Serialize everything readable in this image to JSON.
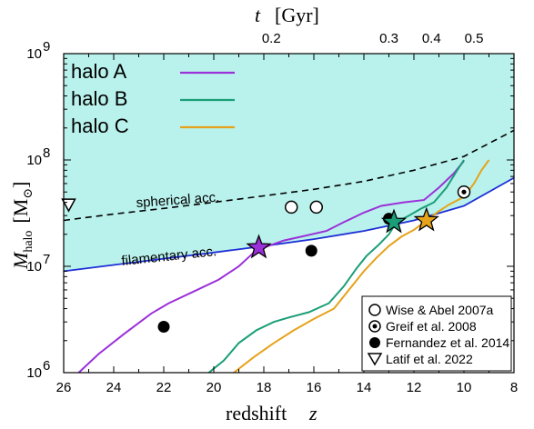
{
  "chart_data": {
    "type": "line",
    "xlabel": "redshift",
    "xlabel_var": "z",
    "ylabel_var": "M",
    "ylabel_sub": "halo",
    "ylabel_unit_open": "[M",
    "ylabel_unit_close": "]",
    "top_axis_var": "t",
    "top_axis_unit": "[Gyr]",
    "x_range": [
      26,
      8
    ],
    "y_range": [
      1000000,
      1000000000
    ],
    "y_scale": "log",
    "x_ticks": [
      "26",
      "24",
      "22",
      "20",
      "18",
      "16",
      "14",
      "12",
      "10",
      "8"
    ],
    "y_ticks": [
      {
        "base": "10",
        "exp": "6",
        "value": 1000000
      },
      {
        "base": "10",
        "exp": "7",
        "value": 10000000
      },
      {
        "base": "10",
        "exp": "8",
        "value": 100000000
      },
      {
        "base": "10",
        "exp": "9",
        "value": 1000000000
      }
    ],
    "top_ticks": [
      {
        "label": "0.2",
        "z": 17.7
      },
      {
        "label": "0.3",
        "z": 13.0
      },
      {
        "label": "0.4",
        "z": 11.3
      },
      {
        "label": "0.5",
        "z": 9.6
      }
    ],
    "colors": {
      "halo_a": "#9b30d9",
      "halo_b": "#1a9e77",
      "halo_c": "#e6a21a",
      "filamentary": "#1f2fd6",
      "spherical": "#000000",
      "shade": "#b9f2ec"
    },
    "curves": {
      "spherical": {
        "label": "spherical acc.",
        "points": [
          [
            26,
            27000000
          ],
          [
            24,
            31000000
          ],
          [
            22,
            35000000
          ],
          [
            20,
            40000000
          ],
          [
            18,
            46000000
          ],
          [
            16,
            53000000
          ],
          [
            14,
            63000000
          ],
          [
            12,
            80000000
          ],
          [
            10,
            108000000
          ],
          [
            8,
            190000000
          ]
        ]
      },
      "filamentary": {
        "label": "filamentary acc.",
        "points": [
          [
            26,
            9000000
          ],
          [
            24,
            10300000
          ],
          [
            22,
            11800000
          ],
          [
            20,
            13500000
          ],
          [
            18,
            15500000
          ],
          [
            16,
            18000000
          ],
          [
            14,
            21500000
          ],
          [
            12,
            27000000
          ],
          [
            10,
            37000000
          ],
          [
            8,
            68000000
          ]
        ]
      }
    },
    "series": [
      {
        "name": "halo A",
        "color": "#9b30d9",
        "points": [
          [
            25.4,
            1000000
          ],
          [
            24.6,
            1500000
          ],
          [
            23.6,
            2300000
          ],
          [
            22.5,
            3600000
          ],
          [
            21.8,
            4500000
          ],
          [
            20.8,
            5800000
          ],
          [
            19.8,
            7500000
          ],
          [
            19.0,
            10000000
          ],
          [
            18.4,
            13500000
          ],
          [
            18.0,
            15000000
          ],
          [
            17.2,
            17500000
          ],
          [
            16.3,
            19500000
          ],
          [
            15.5,
            21500000
          ],
          [
            14.8,
            26000000
          ],
          [
            14.0,
            32000000
          ],
          [
            13.3,
            37000000
          ],
          [
            12.4,
            40000000
          ],
          [
            11.6,
            42000000
          ],
          [
            11.0,
            55000000
          ],
          [
            10.4,
            75000000
          ],
          [
            10.0,
            98000000
          ]
        ]
      },
      {
        "name": "halo B",
        "color": "#1a9e77",
        "points": [
          [
            20.2,
            1000000
          ],
          [
            19.6,
            1300000
          ],
          [
            19.0,
            1900000
          ],
          [
            18.3,
            2500000
          ],
          [
            17.6,
            3000000
          ],
          [
            17.0,
            3300000
          ],
          [
            16.2,
            3700000
          ],
          [
            15.4,
            4500000
          ],
          [
            14.8,
            6500000
          ],
          [
            14.3,
            9500000
          ],
          [
            13.9,
            12500000
          ],
          [
            13.4,
            16000000
          ],
          [
            13.0,
            20000000
          ],
          [
            12.7,
            26000000
          ],
          [
            12.2,
            30000000
          ],
          [
            11.7,
            35000000
          ],
          [
            11.2,
            40000000
          ],
          [
            10.7,
            55000000
          ],
          [
            10.3,
            78000000
          ],
          [
            10.0,
            100000000
          ]
        ]
      },
      {
        "name": "halo C",
        "color": "#e6a21a",
        "points": [
          [
            19.2,
            1000000
          ],
          [
            18.4,
            1400000
          ],
          [
            17.6,
            1900000
          ],
          [
            16.8,
            2500000
          ],
          [
            16.0,
            3200000
          ],
          [
            15.2,
            4000000
          ],
          [
            14.6,
            6000000
          ],
          [
            14.0,
            9000000
          ],
          [
            13.5,
            12000000
          ],
          [
            13.0,
            15500000
          ],
          [
            12.5,
            19000000
          ],
          [
            12.0,
            22000000
          ],
          [
            11.5,
            27000000
          ],
          [
            11.0,
            33000000
          ],
          [
            10.6,
            38000000
          ],
          [
            10.0,
            45000000
          ],
          [
            9.6,
            60000000
          ],
          [
            9.3,
            80000000
          ],
          [
            9.0,
            100000000
          ]
        ]
      }
    ],
    "stars": [
      {
        "series": "halo A",
        "z": 18.2,
        "m": 15000000,
        "color": "#9b30d9"
      },
      {
        "series": "halo B",
        "z": 12.8,
        "m": 26000000,
        "color": "#1a9e77"
      },
      {
        "series": "halo C",
        "z": 11.5,
        "m": 27000000,
        "color": "#e6a21a"
      }
    ],
    "observations": [
      {
        "label": "Wise & Abel 2007a",
        "marker": "open-circle",
        "points": [
          [
            16.9,
            36000000
          ],
          [
            15.9,
            36000000
          ]
        ]
      },
      {
        "label": "Greif et al. 2008",
        "marker": "bullseye",
        "points": [
          [
            10.0,
            50000000
          ]
        ]
      },
      {
        "label": "Fernandez et al. 2014",
        "marker": "filled-circle",
        "points": [
          [
            22.0,
            2700000
          ],
          [
            16.1,
            14000000
          ],
          [
            13.0,
            28000000
          ]
        ]
      },
      {
        "label": "Latif et al. 2022",
        "marker": "down-triangle",
        "points": [
          [
            25.8,
            38000000
          ]
        ]
      }
    ],
    "legend_main_position": "top-left",
    "legend_obs_position": "bottom-right",
    "grid": false
  }
}
